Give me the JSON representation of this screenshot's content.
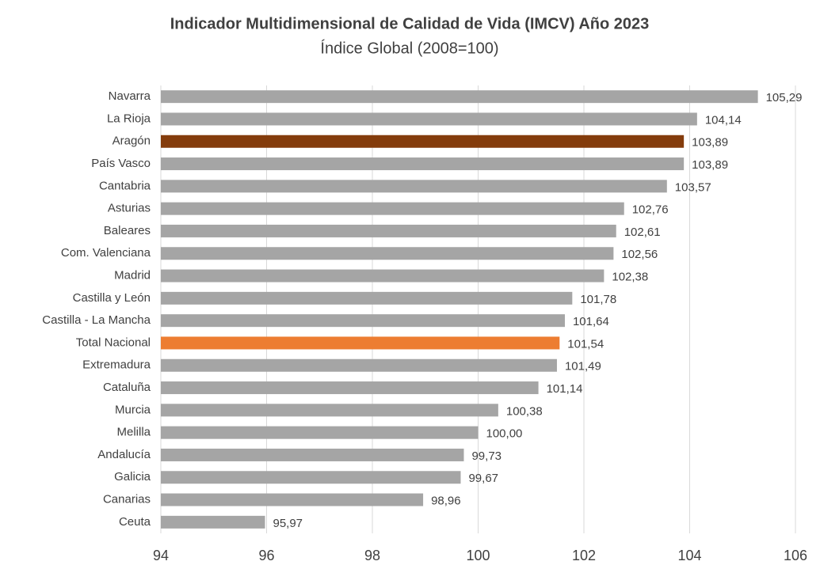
{
  "chart_data": {
    "type": "barh",
    "title": "Indicador Multidimensional de Calidad de Vida (IMCV) Año 2023",
    "subtitle": "Índice Global (2008=100)",
    "categories": [
      "Navarra",
      "La Rioja",
      "Aragón",
      "País Vasco",
      "Cantabria",
      "Asturias",
      "Baleares",
      "Com. Valenciana",
      "Madrid",
      "Castilla y León",
      "Castilla - La Mancha",
      "Total Nacional",
      "Extremadura",
      "Cataluña",
      "Murcia",
      "Melilla",
      "Andalucía",
      "Galicia",
      "Canarias",
      "Ceuta"
    ],
    "values": [
      105.29,
      104.14,
      103.89,
      103.89,
      103.57,
      102.76,
      102.61,
      102.56,
      102.38,
      101.78,
      101.64,
      101.54,
      101.49,
      101.14,
      100.38,
      100.0,
      99.73,
      99.67,
      98.96,
      95.97
    ],
    "value_labels": [
      "105,29",
      "104,14",
      "103,89",
      "103,89",
      "103,57",
      "102,76",
      "102,61",
      "102,56",
      "102,38",
      "101,78",
      "101,64",
      "101,54",
      "101,49",
      "101,14",
      "100,38",
      "100,00",
      "99,73",
      "99,67",
      "98,96",
      "95,97"
    ],
    "colors": [
      "#a5a5a5",
      "#a5a5a5",
      "#843c0c",
      "#a5a5a5",
      "#a5a5a5",
      "#a5a5a5",
      "#a5a5a5",
      "#a5a5a5",
      "#a5a5a5",
      "#a5a5a5",
      "#a5a5a5",
      "#ed7d31",
      "#a5a5a5",
      "#a5a5a5",
      "#a5a5a5",
      "#a5a5a5",
      "#a5a5a5",
      "#a5a5a5",
      "#a5a5a5",
      "#a5a5a5"
    ],
    "xlim": [
      94,
      106
    ],
    "xticks": [
      94,
      96,
      98,
      100,
      102,
      104,
      106
    ],
    "grid": true
  }
}
